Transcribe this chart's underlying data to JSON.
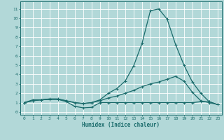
{
  "xlabel": "Humidex (Indice chaleur)",
  "ylabel": "",
  "background_color": "#b2d8d8",
  "grid_color": "#ffffff",
  "line_color": "#1a6b6b",
  "xlim": [
    -0.5,
    23.5
  ],
  "ylim": [
    -0.3,
    11.8
  ],
  "xticks": [
    0,
    1,
    2,
    3,
    4,
    5,
    6,
    7,
    8,
    9,
    10,
    11,
    12,
    13,
    14,
    15,
    16,
    17,
    18,
    19,
    20,
    21,
    22,
    23
  ],
  "yticks": [
    0,
    1,
    2,
    3,
    4,
    5,
    6,
    7,
    8,
    9,
    10,
    11
  ],
  "curve1_x": [
    0,
    1,
    2,
    3,
    4,
    5,
    6,
    7,
    8,
    9,
    10,
    11,
    12,
    13,
    14,
    15,
    16,
    17,
    18,
    19,
    20,
    21,
    22,
    23
  ],
  "curve1_y": [
    1.0,
    1.3,
    1.3,
    1.35,
    1.35,
    1.1,
    0.6,
    0.45,
    0.5,
    1.0,
    1.0,
    1.0,
    1.0,
    1.0,
    1.0,
    1.0,
    1.0,
    1.0,
    1.0,
    1.0,
    1.0,
    1.1,
    1.1,
    0.8
  ],
  "curve2_x": [
    0,
    1,
    2,
    3,
    4,
    5,
    6,
    7,
    8,
    9,
    10,
    11,
    12,
    13,
    14,
    15,
    16,
    17,
    18,
    19,
    20,
    21,
    22,
    23
  ],
  "curve2_y": [
    1.0,
    1.2,
    1.3,
    1.35,
    1.35,
    1.2,
    1.0,
    0.9,
    1.0,
    1.2,
    1.5,
    1.7,
    2.0,
    2.3,
    2.7,
    3.0,
    3.2,
    3.5,
    3.8,
    3.3,
    2.1,
    1.2,
    1.0,
    0.8
  ],
  "curve3_x": [
    0,
    1,
    2,
    3,
    4,
    5,
    6,
    7,
    8,
    9,
    10,
    11,
    12,
    13,
    14,
    15,
    16,
    17,
    18,
    19,
    20,
    21,
    22,
    23
  ],
  "curve3_y": [
    1.0,
    1.2,
    1.3,
    1.4,
    1.4,
    1.2,
    1.0,
    0.9,
    1.0,
    1.3,
    2.0,
    2.5,
    3.3,
    4.9,
    7.3,
    10.8,
    11.0,
    9.9,
    7.2,
    5.0,
    3.2,
    2.0,
    1.1,
    0.8
  ],
  "marker": "+",
  "markersize": 3,
  "linewidth": 0.9,
  "tick_fontsize": 4.5,
  "xlabel_fontsize": 5.5
}
